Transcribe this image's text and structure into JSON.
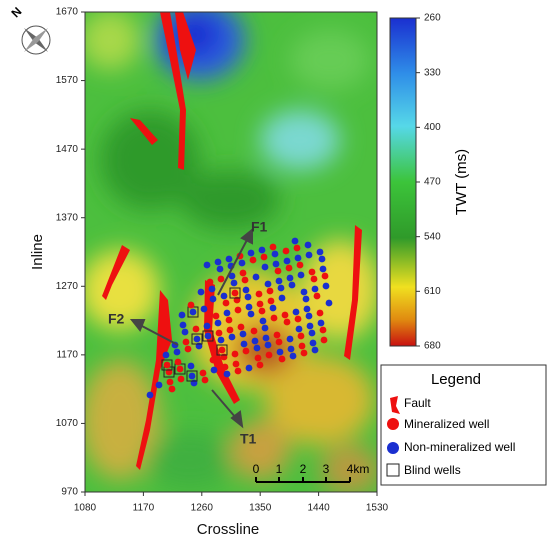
{
  "axes": {
    "x_label": "Crossline",
    "y_label": "Inline",
    "xlim": [
      1080,
      1530
    ],
    "xticks": [
      1080,
      1170,
      1260,
      1350,
      1440,
      1530
    ],
    "ylim": [
      970,
      1670
    ],
    "yticks": [
      970,
      1070,
      1170,
      1270,
      1370,
      1470,
      1570,
      1670
    ]
  },
  "colorbar": {
    "label": "TWT (ms)",
    "lim": [
      260,
      680
    ],
    "ticks": [
      260,
      330,
      400,
      470,
      540,
      610,
      680
    ]
  },
  "annotations": [
    "F1",
    "F2",
    "T1"
  ],
  "scale_bar": {
    "labels": [
      "0",
      "1",
      "2",
      "3",
      "4km"
    ]
  },
  "legend": {
    "title": "Legend",
    "items": [
      "Fault",
      "Mineralized well",
      "Non-mineralized well",
      "Blind wells"
    ]
  },
  "compass": "N"
}
